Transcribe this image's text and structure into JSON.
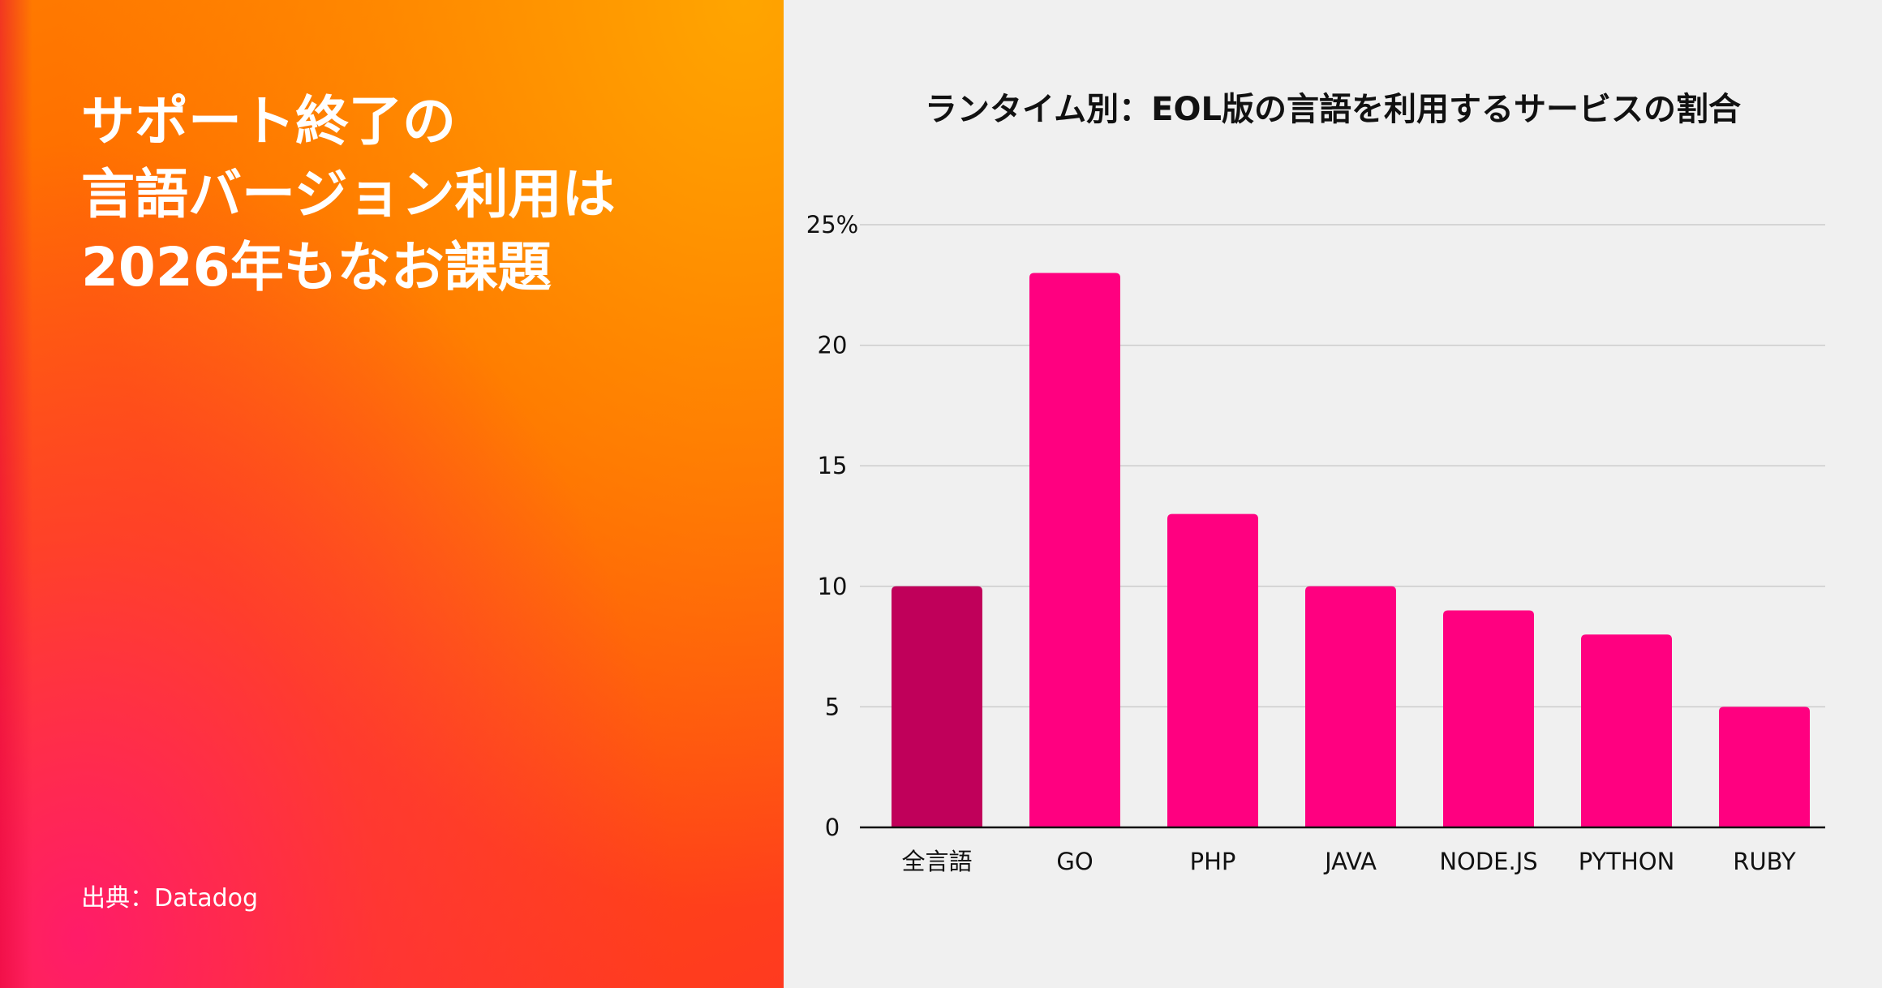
{
  "headline": {
    "line1": "サポート終了の",
    "line2": "言語バージョン利用は",
    "line3": "2026年もなお課題"
  },
  "source": "出典：Datadog",
  "colors": {
    "bar": "#ff0080",
    "bar_highlight": "#c0005a",
    "grid": "#cccccc",
    "axis": "#111111"
  },
  "chart_data": {
    "type": "bar",
    "title": "ランタイム別：EOL版の言語を利用するサービスの割合",
    "categories": [
      "全言語",
      "GO",
      "PHP",
      "JAVA",
      "NODE.JS",
      "PYTHON",
      "RUBY"
    ],
    "values": [
      10,
      23,
      13,
      10,
      9,
      8,
      5
    ],
    "highlight_index": 0,
    "ylim": [
      0,
      25
    ],
    "yticks": [
      0,
      5,
      10,
      15,
      20,
      25
    ],
    "ytick_labels": [
      "0",
      "5",
      "10",
      "15",
      "20",
      "25%"
    ],
    "xlabel": "",
    "ylabel": "",
    "grid": true
  }
}
